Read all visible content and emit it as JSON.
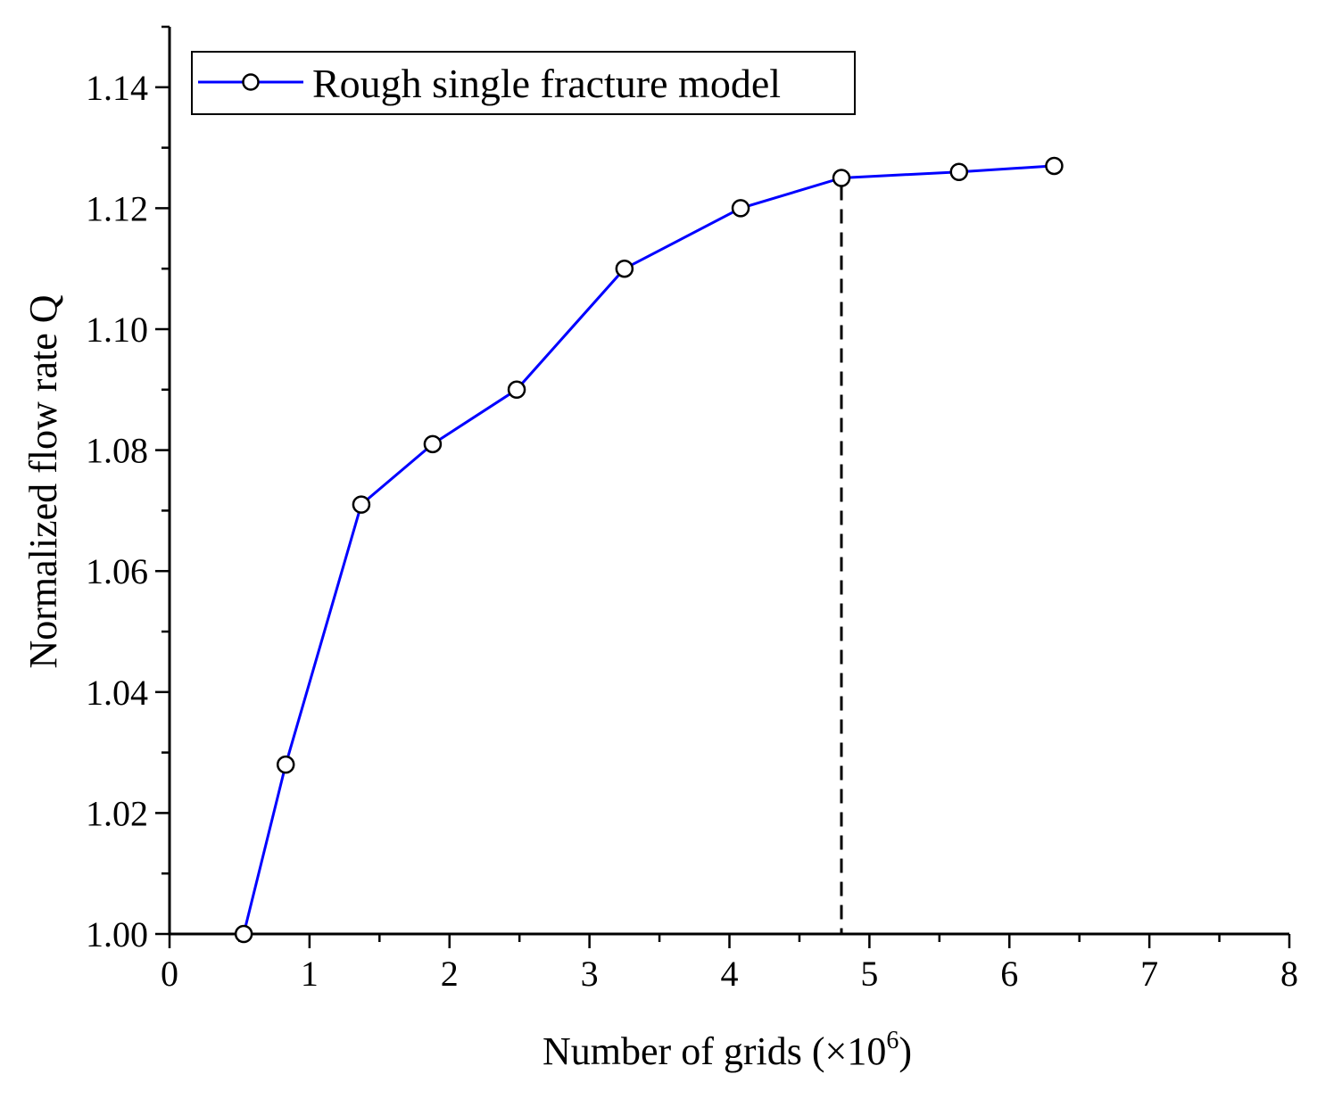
{
  "chart_data": {
    "type": "line",
    "title": "",
    "xlabel": "Number of grids (×10",
    "xlabel_superscript": "6",
    "xlabel_suffix": ")",
    "ylabel": "Normalized flow rate Q",
    "xlim": [
      0,
      8
    ],
    "ylim": [
      1.0,
      1.15
    ],
    "x_ticks": [
      0,
      1,
      2,
      3,
      4,
      5,
      6,
      7,
      8
    ],
    "x_tick_labels": [
      "0",
      "1",
      "2",
      "3",
      "4",
      "5",
      "6",
      "7",
      "8"
    ],
    "y_ticks": [
      1.0,
      1.02,
      1.04,
      1.06,
      1.08,
      1.1,
      1.12,
      1.14
    ],
    "y_tick_labels": [
      "1.00",
      "1.02",
      "1.04",
      "1.06",
      "1.08",
      "1.10",
      "1.12",
      "1.14"
    ],
    "grid": false,
    "legend_position": "top-left",
    "series": [
      {
        "name": "Rough single fracture model",
        "color": "#0000ff",
        "marker": "open-circle",
        "x": [
          0.53,
          0.83,
          1.37,
          1.88,
          2.48,
          3.25,
          4.08,
          4.8,
          5.64,
          6.32
        ],
        "y": [
          1.0,
          1.028,
          1.071,
          1.081,
          1.09,
          1.11,
          1.12,
          1.125,
          1.126,
          1.127
        ]
      }
    ],
    "annotations": [
      {
        "type": "vertical-dashed-line",
        "x": 4.8,
        "y_from": 1.0,
        "y_to": 1.125,
        "color": "#000000"
      }
    ]
  }
}
